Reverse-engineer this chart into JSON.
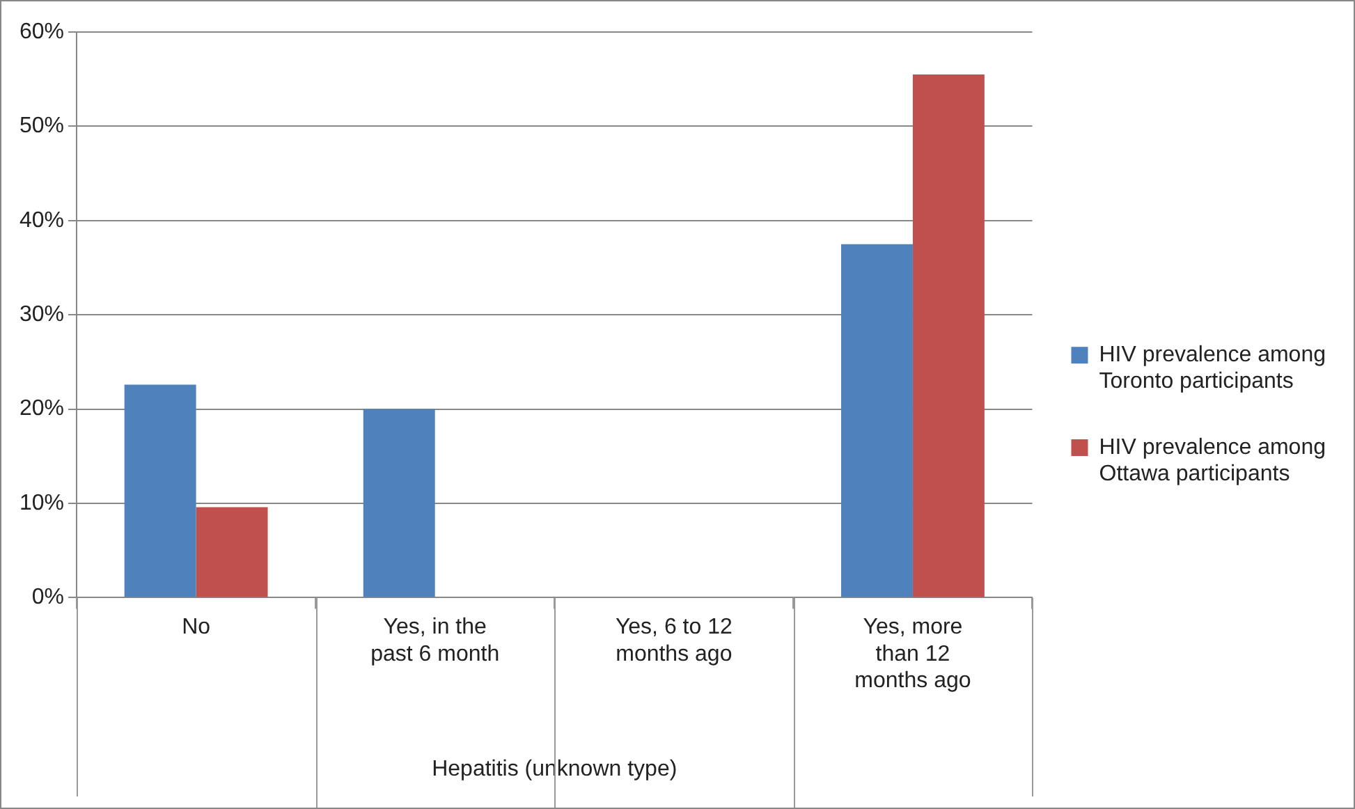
{
  "chart_data": {
    "type": "bar",
    "xlabel": "Hepatitis (unknown type)",
    "categories": [
      "No",
      "Yes, in the past 6 month",
      "Yes, 6 to 12 months ago",
      "Yes, more than 12 months ago"
    ],
    "series": [
      {
        "name": "HIV prevalence among Toronto participants",
        "color": "#4f81bd",
        "values": [
          22.6,
          20,
          0,
          37.5
        ]
      },
      {
        "name": "HIV prevalence among Ottawa participants",
        "color": "#c0504d",
        "values": [
          9.6,
          0,
          0,
          55.5
        ]
      }
    ],
    "ylim": [
      0,
      60
    ],
    "yticks": [
      {
        "value": 0,
        "label": "0%"
      },
      {
        "value": 10,
        "label": "10%"
      },
      {
        "value": 20,
        "label": "20%"
      },
      {
        "value": 30,
        "label": "30%"
      },
      {
        "value": 40,
        "label": "40%"
      },
      {
        "value": 50,
        "label": "50%"
      },
      {
        "value": 60,
        "label": "60%"
      }
    ],
    "grid": "y",
    "legend": "right"
  }
}
